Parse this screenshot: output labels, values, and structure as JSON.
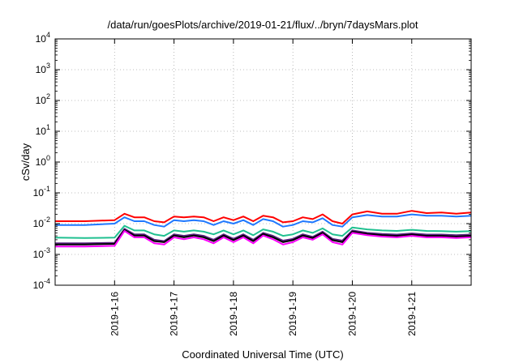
{
  "chart_data": {
    "type": "line",
    "title": "/data/run/goesPlots/archive/2019-01-21/flux/../bryn/7daysMars.plot",
    "xlabel": "Coordinated Universal Time (UTC)",
    "ylabel": "cSv/day",
    "yscale": "log",
    "ylim": [
      0.0001,
      10000
    ],
    "xlim": [
      "2019-01-15T00:00",
      "2019-01-21T23:59"
    ],
    "grid": true,
    "legend": "none",
    "y_ticks": [
      {
        "base": "10",
        "exp": "4",
        "value": 10000
      },
      {
        "base": "10",
        "exp": "3",
        "value": 1000
      },
      {
        "base": "10",
        "exp": "2",
        "value": 100
      },
      {
        "base": "10",
        "exp": "1",
        "value": 10
      },
      {
        "base": "10",
        "exp": "0",
        "value": 1
      },
      {
        "base": "10",
        "exp": "-1",
        "value": 0.1
      },
      {
        "base": "10",
        "exp": "-2",
        "value": 0.01
      },
      {
        "base": "10",
        "exp": "-3",
        "value": 0.001
      },
      {
        "base": "10",
        "exp": "-4",
        "value": 0.0001
      }
    ],
    "x_ticks": [
      "2019-1-16",
      "2019-1-17",
      "2019-1-18",
      "2019-1-19",
      "2019-1-20",
      "2019-1-21"
    ],
    "x": [
      "2019-01-15T00:00",
      "2019-01-15T12:00",
      "2019-01-16T00:00",
      "2019-01-16T04:00",
      "2019-01-16T08:00",
      "2019-01-16T12:00",
      "2019-01-16T16:00",
      "2019-01-16T20:00",
      "2019-01-17T00:00",
      "2019-01-17T04:00",
      "2019-01-17T08:00",
      "2019-01-17T12:00",
      "2019-01-17T16:00",
      "2019-01-17T20:00",
      "2019-01-18T00:00",
      "2019-01-18T04:00",
      "2019-01-18T08:00",
      "2019-01-18T12:00",
      "2019-01-18T16:00",
      "2019-01-18T20:00",
      "2019-01-19T00:00",
      "2019-01-19T04:00",
      "2019-01-19T08:00",
      "2019-01-19T12:00",
      "2019-01-19T16:00",
      "2019-01-19T20:00",
      "2019-01-20T00:00",
      "2019-01-20T06:00",
      "2019-01-20T12:00",
      "2019-01-20T18:00",
      "2019-01-21T00:00",
      "2019-01-21T06:00",
      "2019-01-21T12:00",
      "2019-01-21T18:00",
      "2019-01-21T23:59"
    ],
    "series": [
      {
        "color": "#ff0000",
        "values": [
          0.012,
          0.012,
          0.013,
          0.021,
          0.016,
          0.016,
          0.012,
          0.011,
          0.017,
          0.016,
          0.017,
          0.016,
          0.012,
          0.016,
          0.013,
          0.017,
          0.012,
          0.018,
          0.016,
          0.011,
          0.012,
          0.016,
          0.014,
          0.02,
          0.012,
          0.01,
          0.02,
          0.025,
          0.021,
          0.021,
          0.026,
          0.022,
          0.023,
          0.021,
          0.023
        ]
      },
      {
        "color": "#1f78ff",
        "values": [
          0.009,
          0.009,
          0.01,
          0.016,
          0.012,
          0.012,
          0.009,
          0.008,
          0.013,
          0.012,
          0.013,
          0.012,
          0.009,
          0.012,
          0.01,
          0.013,
          0.009,
          0.014,
          0.012,
          0.008,
          0.009,
          0.012,
          0.011,
          0.015,
          0.009,
          0.008,
          0.016,
          0.019,
          0.017,
          0.017,
          0.02,
          0.018,
          0.018,
          0.017,
          0.018
        ]
      },
      {
        "color": "#20c090",
        "values": [
          0.0035,
          0.0034,
          0.0035,
          0.0085,
          0.006,
          0.006,
          0.0045,
          0.004,
          0.006,
          0.0055,
          0.006,
          0.0055,
          0.0045,
          0.006,
          0.0045,
          0.006,
          0.0042,
          0.0065,
          0.0055,
          0.004,
          0.0045,
          0.006,
          0.005,
          0.007,
          0.0045,
          0.004,
          0.0075,
          0.0065,
          0.006,
          0.0058,
          0.0063,
          0.0058,
          0.0057,
          0.0055,
          0.0057
        ]
      },
      {
        "color": "#5a2080",
        "values": [
          0.0023,
          0.0023,
          0.0024,
          0.0068,
          0.0045,
          0.0045,
          0.003,
          0.0027,
          0.0045,
          0.004,
          0.0045,
          0.004,
          0.003,
          0.0045,
          0.0032,
          0.0045,
          0.003,
          0.005,
          0.004,
          0.0028,
          0.0032,
          0.0045,
          0.0037,
          0.0055,
          0.0032,
          0.0028,
          0.006,
          0.005,
          0.0046,
          0.0044,
          0.0048,
          0.0044,
          0.0044,
          0.0042,
          0.0044
        ]
      },
      {
        "color": "#000000",
        "values": [
          0.0021,
          0.0021,
          0.0022,
          0.0062,
          0.0041,
          0.0041,
          0.0027,
          0.0025,
          0.0041,
          0.0036,
          0.0041,
          0.0036,
          0.0027,
          0.0041,
          0.0029,
          0.0041,
          0.0027,
          0.0046,
          0.0036,
          0.0025,
          0.0029,
          0.0041,
          0.0034,
          0.005,
          0.0029,
          0.0025,
          0.0055,
          0.0046,
          0.0042,
          0.004,
          0.0044,
          0.004,
          0.004,
          0.0038,
          0.004
        ]
      },
      {
        "color": "#ff00ff",
        "values": [
          0.0018,
          0.0018,
          0.0019,
          0.0058,
          0.0036,
          0.0036,
          0.0023,
          0.0021,
          0.0036,
          0.0031,
          0.0036,
          0.0031,
          0.0023,
          0.0036,
          0.0025,
          0.0036,
          0.0023,
          0.0041,
          0.0031,
          0.0021,
          0.0025,
          0.0036,
          0.003,
          0.0045,
          0.0025,
          0.0021,
          0.005,
          0.0042,
          0.0038,
          0.0036,
          0.004,
          0.0036,
          0.0036,
          0.0034,
          0.0036
        ]
      }
    ]
  }
}
